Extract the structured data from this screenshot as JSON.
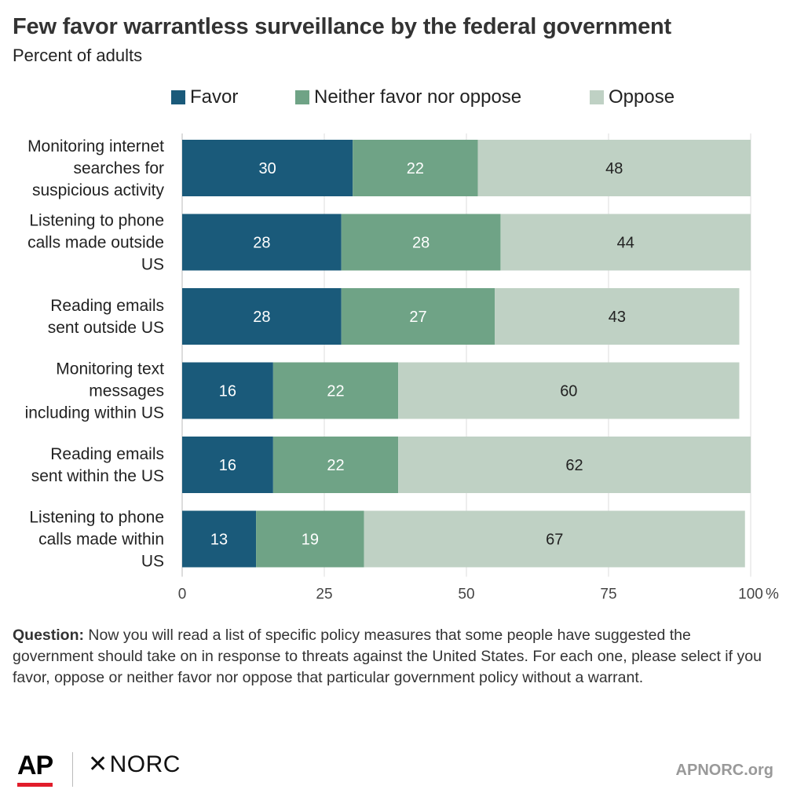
{
  "header": {
    "title": "Few favor warrantless surveillance by the federal government",
    "subtitle": "Percent of adults"
  },
  "colors": {
    "favor": "#1a5a7a",
    "neither": "#6fa386",
    "oppose": "#bfd1c4",
    "gridline": "#dddddd",
    "axis_line": "#bbbbbb"
  },
  "chart_data": {
    "type": "bar",
    "orientation": "horizontal",
    "stacked": true,
    "categories": [
      [
        "Monitoring internet",
        "searches for",
        "suspicious activity"
      ],
      [
        "Listening to phone",
        "calls made outside",
        "US"
      ],
      [
        "Reading emails",
        "sent outside US"
      ],
      [
        "Monitoring text",
        "messages",
        "including within US"
      ],
      [
        "Reading emails",
        "sent within the US"
      ],
      [
        "Listening to phone",
        "calls made within",
        "US"
      ]
    ],
    "series": [
      {
        "name": "Favor",
        "values": [
          30,
          28,
          28,
          16,
          16,
          13
        ]
      },
      {
        "name": "Neither favor nor oppose",
        "values": [
          22,
          28,
          27,
          22,
          22,
          19
        ]
      },
      {
        "name": "Oppose",
        "values": [
          48,
          44,
          43,
          60,
          62,
          67
        ]
      }
    ],
    "xlim": [
      0,
      100
    ],
    "xticks": [
      "0",
      "25",
      "50",
      "75",
      "100"
    ],
    "xtick_values": [
      0,
      25,
      50,
      75,
      100
    ],
    "x_unit": "%",
    "grid": true,
    "legend_position": "top"
  },
  "question": {
    "label": "Question:",
    "text": " Now you will read a list of specific policy measures that some people have suggested the government should take on in response to threats against the United States. For each one, please select if you favor, oppose or neither favor nor oppose that particular government policy without a warrant."
  },
  "footer": {
    "ap_logo": "AP",
    "norc_logo": "NORC",
    "site": "APNORC.org"
  }
}
